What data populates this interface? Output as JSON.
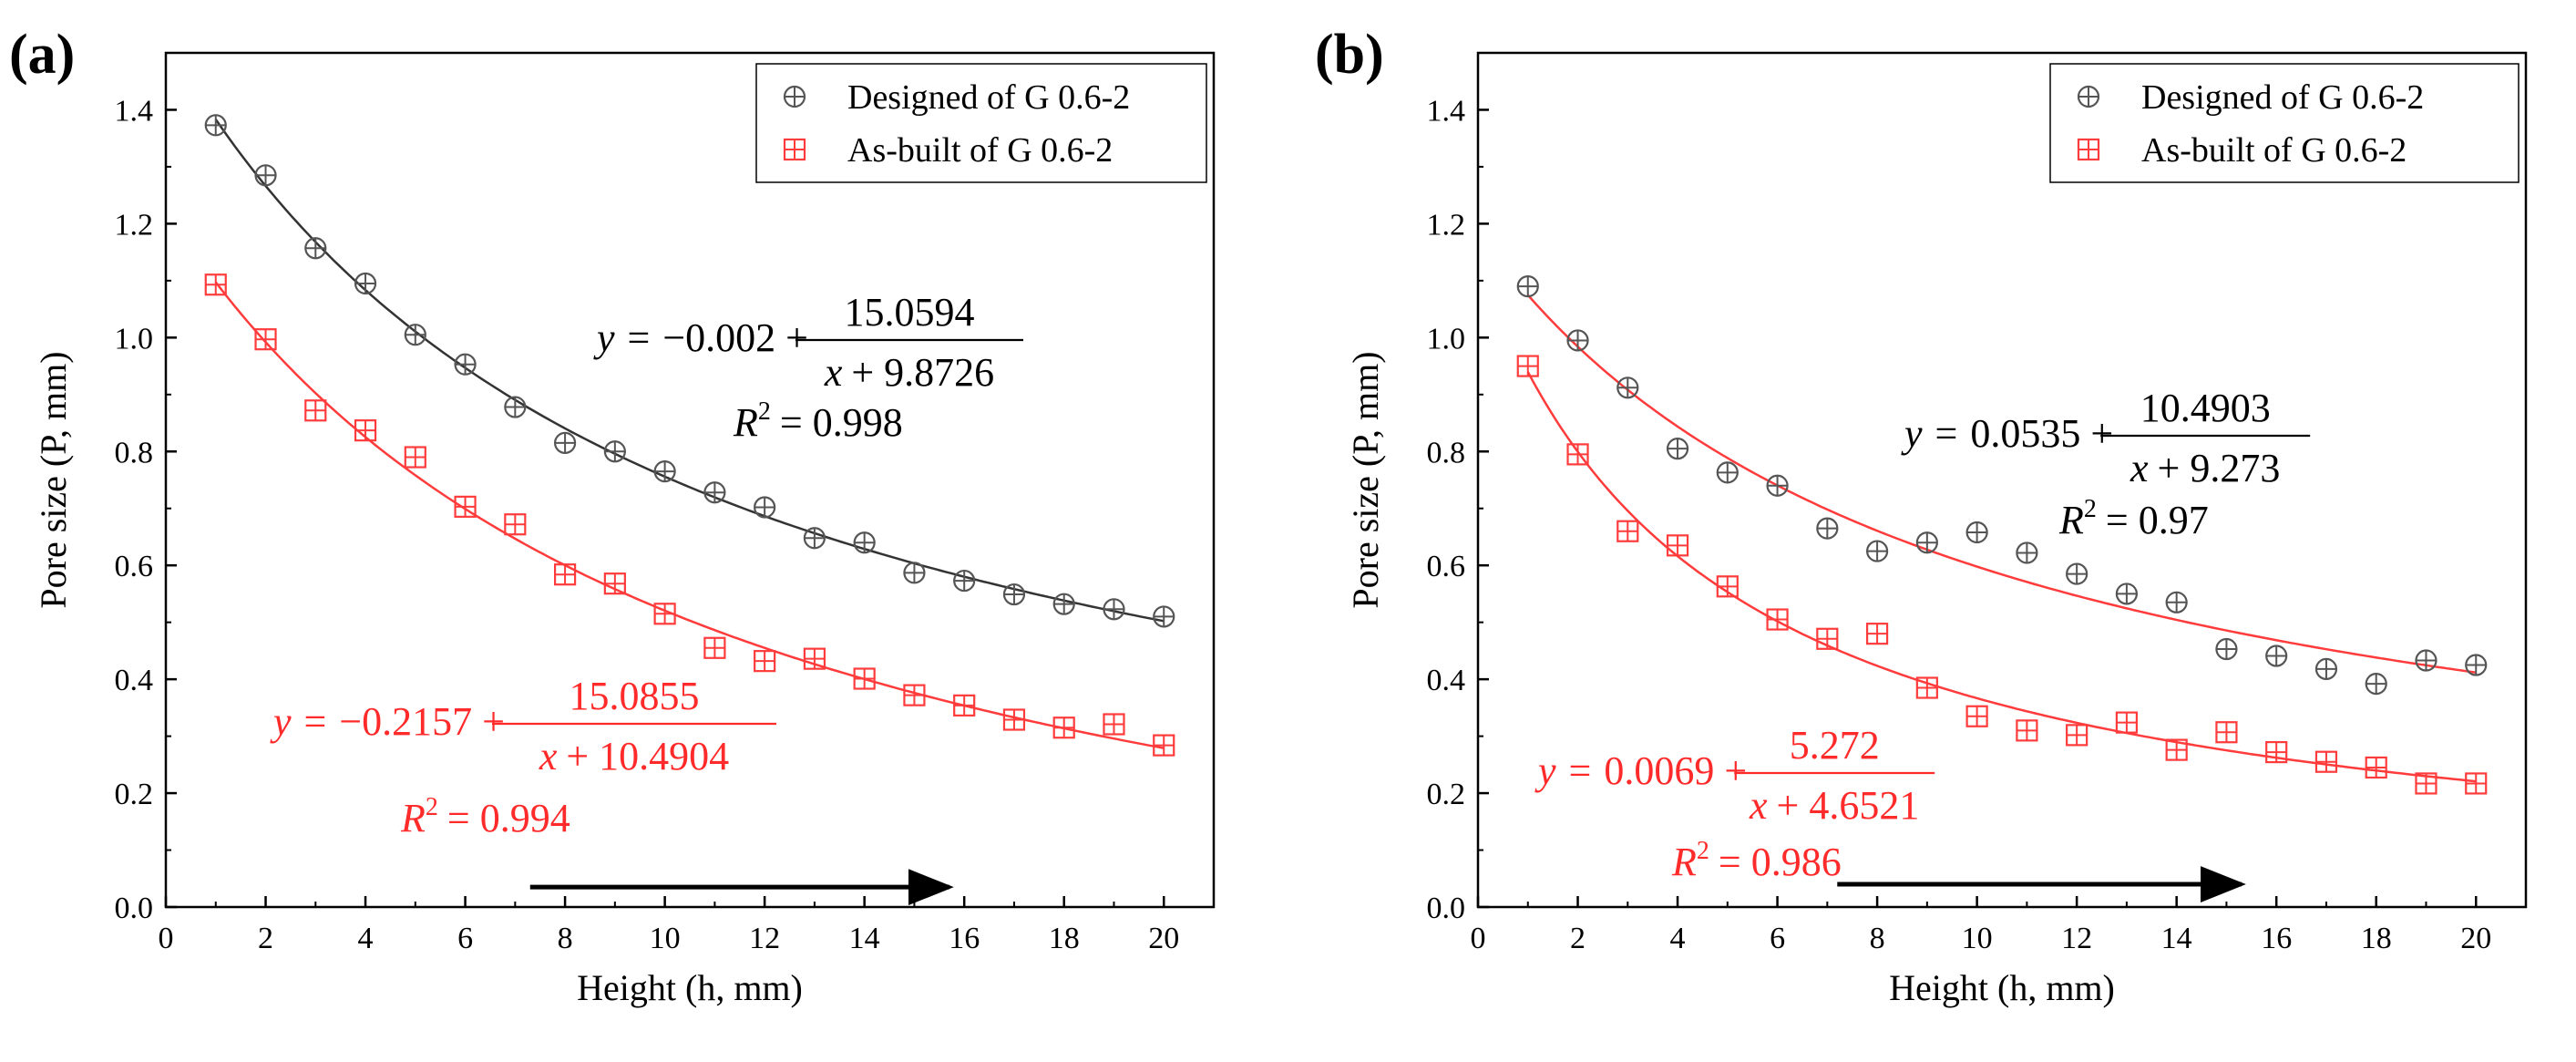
{
  "chart_data": [
    {
      "type": "scatter",
      "panel_label": "(a)",
      "xlabel": "Height (h, mm)",
      "ylabel": "Pore size (P, mm)",
      "xlim": [
        0,
        21
      ],
      "ylim": [
        0,
        1.5
      ],
      "xticks": [
        0,
        2,
        4,
        6,
        8,
        10,
        12,
        14,
        16,
        18,
        20
      ],
      "yticks": [
        0.0,
        0.2,
        0.4,
        0.6,
        0.8,
        1.0,
        1.2,
        1.4
      ],
      "xtick_labels": [
        "0",
        "2",
        "4",
        "6",
        "8",
        "10",
        "12",
        "14",
        "16",
        "18",
        "20"
      ],
      "ytick_labels": [
        "0.0",
        "0.2",
        "0.4",
        "0.6",
        "0.8",
        "1.0",
        "1.2",
        "1.4"
      ],
      "legend_position": "top-right",
      "grid": false,
      "x": [
        1,
        2,
        3,
        4,
        5,
        6,
        7,
        8,
        9,
        10,
        11,
        12,
        13,
        14,
        15,
        16,
        17,
        18,
        19,
        20
      ],
      "series": [
        {
          "name": "Designed of G 0.6-2",
          "color": "#555555",
          "marker": "circle-plus",
          "values": [
            1.373,
            1.285,
            1.157,
            1.095,
            1.005,
            0.953,
            0.878,
            0.815,
            0.8,
            0.765,
            0.728,
            0.702,
            0.648,
            0.64,
            0.587,
            0.573,
            0.549,
            0.532,
            0.523,
            0.51
          ],
          "fit": {
            "a": -0.002,
            "b": 15.0594,
            "c": 9.8726,
            "color": "#333333"
          }
        },
        {
          "name": "As-built of G 0.6-2",
          "color": "#ff3b3b",
          "marker": "square-plus",
          "values": [
            1.093,
            0.997,
            0.872,
            0.837,
            0.79,
            0.703,
            0.672,
            0.584,
            0.568,
            0.515,
            0.455,
            0.432,
            0.436,
            0.401,
            0.372,
            0.354,
            0.329,
            0.315,
            0.321,
            0.284
          ],
          "fit": {
            "a": -0.2157,
            "b": 15.0855,
            "c": 10.4904,
            "color": "#ff3b3b"
          }
        }
      ],
      "annotations": [
        {
          "series": 0,
          "color": "#000000",
          "y_var": "y",
          "x_var": "x",
          "eq": "=",
          "prefix": "−0.002 +",
          "numerator": "15.0594",
          "denominator": "+ 9.8726",
          "r2_label": "R",
          "r2_sup": "2",
          "r2_value": "= 0.998"
        },
        {
          "series": 1,
          "color": "#ff2a2a",
          "y_var": "y",
          "x_var": "x",
          "eq": "=",
          "prefix": "−0.2157 +",
          "numerator": "15.0855",
          "denominator": "+ 10.4904",
          "r2_label": "R",
          "r2_sup": "2",
          "r2_value": "= 0.994"
        }
      ],
      "arrow": {
        "from_x": 7.3,
        "to_x": 15.7,
        "y": 0.035,
        "color": "#000000"
      }
    },
    {
      "type": "scatter",
      "panel_label": "(b)",
      "xlabel": "Height (h, mm)",
      "ylabel": "Pore size (P, mm)",
      "xlim": [
        0,
        21
      ],
      "ylim": [
        0,
        1.5
      ],
      "xticks": [
        0,
        2,
        4,
        6,
        8,
        10,
        12,
        14,
        16,
        18,
        20
      ],
      "yticks": [
        0.0,
        0.2,
        0.4,
        0.6,
        0.8,
        1.0,
        1.2,
        1.4
      ],
      "xtick_labels": [
        "0",
        "2",
        "4",
        "6",
        "8",
        "10",
        "12",
        "14",
        "16",
        "18",
        "20"
      ],
      "ytick_labels": [
        "0.0",
        "0.2",
        "0.4",
        "0.6",
        "0.8",
        "1.0",
        "1.2",
        "1.4"
      ],
      "legend_position": "top-right",
      "grid": false,
      "x": [
        1,
        2,
        3,
        4,
        5,
        6,
        7,
        8,
        9,
        10,
        11,
        12,
        13,
        14,
        15,
        16,
        17,
        18,
        19,
        20
      ],
      "series": [
        {
          "name": "Designed of G 0.6-2",
          "color": "#555555",
          "marker": "circle-plus",
          "values": [
            1.09,
            0.995,
            0.912,
            0.805,
            0.763,
            0.74,
            0.665,
            0.625,
            0.64,
            0.658,
            0.622,
            0.585,
            0.55,
            0.535,
            0.453,
            0.441,
            0.418,
            0.392,
            0.433,
            0.425
          ],
          "fit": {
            "a": 0.0535,
            "b": 10.4903,
            "c": 9.273,
            "color": "#ff3b3b"
          }
        },
        {
          "name": "As-built of G 0.6-2",
          "color": "#ff3b3b",
          "marker": "square-plus",
          "values": [
            0.95,
            0.795,
            0.66,
            0.635,
            0.563,
            0.505,
            0.471,
            0.48,
            0.385,
            0.335,
            0.31,
            0.302,
            0.324,
            0.276,
            0.307,
            0.272,
            0.255,
            0.245,
            0.217,
            0.217
          ],
          "fit": {
            "a": 0.0069,
            "b": 5.272,
            "c": 4.6521,
            "color": "#ff3b3b"
          }
        }
      ],
      "annotations": [
        {
          "series": 0,
          "color": "#000000",
          "y_var": "y",
          "x_var": "x",
          "eq": "=",
          "prefix": "0.0535 +",
          "numerator": "10.4903",
          "denominator": "+ 9.273",
          "r2_label": "R",
          "r2_sup": "2",
          "r2_value": "= 0.97"
        },
        {
          "series": 1,
          "color": "#ff2a2a",
          "y_var": "y",
          "x_var": "x",
          "eq": "=",
          "prefix": "0.0069 +",
          "numerator": "5.272",
          "denominator": "+ 4.6521",
          "r2_label": "R",
          "r2_sup": "2",
          "r2_value": "= 0.986"
        }
      ],
      "arrow": {
        "from_x": 7.2,
        "to_x": 15.3,
        "y": 0.04,
        "color": "#000000"
      }
    }
  ]
}
